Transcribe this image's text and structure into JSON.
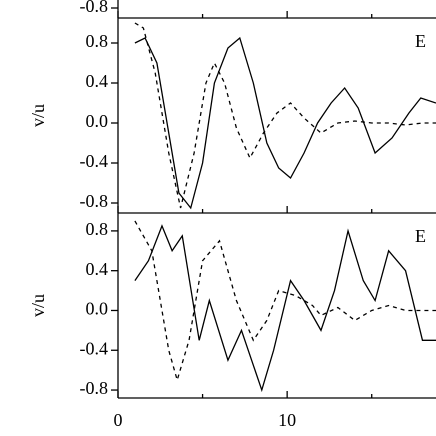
{
  "chart_data": [
    {
      "type": "line",
      "ylim": [
        -0.9,
        1.0
      ],
      "yticks": [
        -0.8
      ],
      "xlim": [
        0,
        18.8
      ],
      "xticks": [
        0,
        10
      ],
      "minor_xticks": [
        5,
        15
      ],
      "show_xtick_labels": false,
      "series": []
    },
    {
      "type": "line",
      "ylabel": "v/u",
      "annotation": "E",
      "ylim": [
        -0.9,
        1.05
      ],
      "yticks": [
        0.8,
        0.4,
        {
          "value": 0,
          "label": "0.0"
        },
        -0.4,
        -0.8
      ],
      "xlim": [
        0,
        18.8
      ],
      "xticks": [
        0,
        10
      ],
      "minor_xticks": [
        5,
        15
      ],
      "show_xtick_labels": false,
      "series": [
        {
          "style": "solid",
          "color": "#000000",
          "x": [
            1,
            1.6,
            2.3,
            3,
            3.6,
            4.3,
            5,
            5.7,
            6.5,
            7.2,
            8,
            8.8,
            9.5,
            10.2,
            11,
            11.8,
            12.6,
            13.4,
            14.2,
            15.2,
            16.2,
            17.2,
            17.9,
            18.8
          ],
          "values": [
            0.8,
            0.85,
            0.6,
            -0.1,
            -0.7,
            -0.85,
            -0.4,
            0.4,
            0.75,
            0.85,
            0.4,
            -0.2,
            -0.45,
            -0.55,
            -0.3,
            0.0,
            0.2,
            0.35,
            0.15,
            -0.3,
            -0.15,
            0.1,
            0.25,
            0.2
          ]
        },
        {
          "style": "dashed",
          "color": "#000000",
          "x": [
            1,
            1.5,
            2.2,
            3,
            3.7,
            4.5,
            5.2,
            5.7,
            6.3,
            7,
            7.8,
            8.6,
            9.4,
            10.2,
            11,
            12,
            13,
            14,
            15,
            16,
            17,
            18,
            18.8
          ],
          "values": [
            1.0,
            0.95,
            0.5,
            -0.3,
            -0.85,
            -0.3,
            0.4,
            0.6,
            0.4,
            -0.05,
            -0.35,
            -0.1,
            0.1,
            0.2,
            0.05,
            -0.1,
            0.0,
            0.02,
            0.0,
            0.0,
            -0.02,
            0.0,
            0.0
          ]
        }
      ]
    },
    {
      "type": "line",
      "ylabel": "v/u",
      "annotation": "E",
      "ylim": [
        -0.88,
        0.98
      ],
      "yticks": [
        0.8,
        0.4,
        {
          "value": 0,
          "label": "0.0"
        },
        -0.4,
        -0.8
      ],
      "xlim": [
        0,
        18.8
      ],
      "xticks": [
        0,
        10
      ],
      "minor_xticks": [
        5,
        15
      ],
      "show_xtick_labels": true,
      "series": [
        {
          "style": "solid",
          "color": "#000000",
          "x": [
            1,
            1.8,
            2.6,
            3.2,
            3.8,
            4.8,
            5.4,
            6.5,
            7.3,
            8.5,
            9.2,
            10.2,
            11,
            12,
            12.8,
            13.6,
            14.5,
            15.2,
            16,
            17,
            18,
            18.8
          ],
          "values": [
            0.3,
            0.5,
            0.85,
            0.6,
            0.75,
            -0.3,
            0.1,
            -0.5,
            -0.2,
            -0.8,
            -0.4,
            0.3,
            0.1,
            -0.2,
            0.2,
            0.8,
            0.3,
            0.1,
            0.6,
            0.4,
            -0.3,
            -0.3
          ]
        },
        {
          "style": "dashed",
          "color": "#000000",
          "x": [
            1,
            2,
            3,
            3.5,
            4.2,
            5,
            6,
            7,
            8,
            8.8,
            9.5,
            10.5,
            11.5,
            12,
            13,
            14,
            15,
            16,
            17,
            18,
            18.8
          ],
          "values": [
            0.9,
            0.6,
            -0.4,
            -0.7,
            -0.3,
            0.5,
            0.7,
            0.1,
            -0.3,
            -0.1,
            0.2,
            0.15,
            0.05,
            -0.05,
            0.03,
            -0.1,
            0.0,
            0.05,
            0.0,
            0.0,
            0.0
          ]
        }
      ]
    }
  ]
}
